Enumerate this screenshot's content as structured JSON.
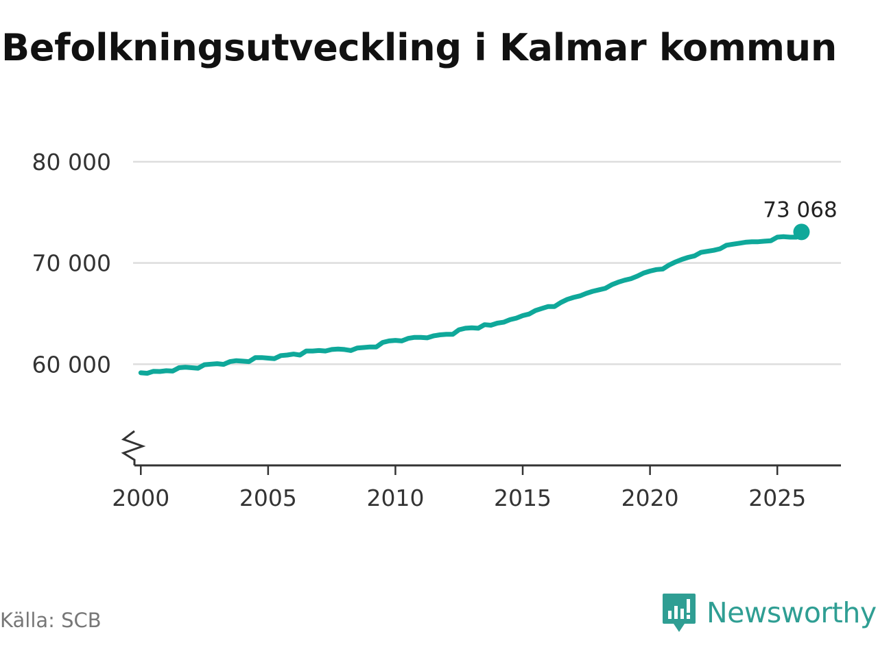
{
  "title": "Befolkningsutveckling i Kalmar kommun",
  "source": "Källa: SCB",
  "brand": {
    "name": "Newsworthy",
    "icon": "newsworthy-logo-icon",
    "color": "#2f9e93"
  },
  "colors": {
    "line": "#0fa89a",
    "grid": "#dddddd",
    "axis": "#333333"
  },
  "chart_data": {
    "type": "line",
    "title": "Befolkningsutveckling i Kalmar kommun",
    "xlabel": "",
    "ylabel": "",
    "xlim": [
      1999.75,
      2027.5
    ],
    "ylim": [
      50000,
      80000
    ],
    "y_break": true,
    "grid": "horizontal",
    "y_ticks": [
      {
        "value": 60000,
        "label": "60 000"
      },
      {
        "value": 70000,
        "label": "70 000"
      },
      {
        "value": 80000,
        "label": "80 000"
      }
    ],
    "x_ticks": [
      {
        "value": 2000,
        "label": "2000"
      },
      {
        "value": 2005,
        "label": "2005"
      },
      {
        "value": 2010,
        "label": "2010"
      },
      {
        "value": 2015,
        "label": "2015"
      },
      {
        "value": 2020,
        "label": "2020"
      },
      {
        "value": 2025,
        "label": "2025"
      }
    ],
    "end_label": "73 068",
    "series": [
      {
        "x": [
          2000.0,
          2000.25,
          2000.5,
          2000.75,
          2001.0,
          2001.25,
          2001.5,
          2001.75,
          2002.0,
          2002.25,
          2002.5,
          2002.75,
          2003.0,
          2003.25,
          2003.5,
          2003.75,
          2004.0,
          2004.25,
          2004.5,
          2004.75,
          2005.0,
          2005.25,
          2005.5,
          2005.75,
          2006.0,
          2006.25,
          2006.5,
          2006.75,
          2007.0,
          2007.25,
          2007.5,
          2007.75,
          2008.0,
          2008.25,
          2008.5,
          2008.75,
          2009.0,
          2009.25,
          2009.5,
          2009.75,
          2010.0,
          2010.25,
          2010.5,
          2010.75,
          2011.0,
          2011.25,
          2011.5,
          2011.75,
          2012.0,
          2012.25,
          2012.5,
          2012.75,
          2013.0,
          2013.25,
          2013.5,
          2013.75,
          2014.0,
          2014.25,
          2014.5,
          2014.75,
          2015.0,
          2015.25,
          2015.5,
          2015.75,
          2016.0,
          2016.25,
          2016.5,
          2016.75,
          2017.0,
          2017.25,
          2017.5,
          2017.75,
          2018.0,
          2018.25,
          2018.5,
          2018.75,
          2019.0,
          2019.25,
          2019.5,
          2019.75,
          2020.0,
          2020.25,
          2020.5,
          2020.75,
          2021.0,
          2021.25,
          2021.5,
          2021.75,
          2022.0,
          2022.25,
          2022.5,
          2022.75,
          2023.0,
          2023.25,
          2023.5,
          2023.75,
          2024.0,
          2024.25,
          2024.5,
          2024.75,
          2025.0,
          2025.25,
          2025.5,
          2025.75,
          2025.95
        ],
        "values": [
          59150,
          59100,
          59300,
          59280,
          59350,
          59320,
          59650,
          59700,
          59650,
          59600,
          59950,
          60000,
          60050,
          59980,
          60250,
          60350,
          60300,
          60250,
          60650,
          60650,
          60600,
          60550,
          60850,
          60900,
          61000,
          60900,
          61300,
          61300,
          61350,
          61300,
          61450,
          61500,
          61450,
          61350,
          61600,
          61650,
          61700,
          61700,
          62150,
          62300,
          62350,
          62300,
          62550,
          62650,
          62650,
          62600,
          62800,
          62900,
          62950,
          62950,
          63400,
          63550,
          63600,
          63550,
          63900,
          63850,
          64050,
          64150,
          64400,
          64550,
          64800,
          64950,
          65300,
          65500,
          65700,
          65700,
          66100,
          66400,
          66600,
          66750,
          67000,
          67200,
          67350,
          67500,
          67850,
          68100,
          68300,
          68450,
          68700,
          69000,
          69200,
          69350,
          69400,
          69800,
          70100,
          70350,
          70550,
          70700,
          71050,
          71150,
          71250,
          71400,
          71750,
          71850,
          71950,
          72050,
          72100,
          72100,
          72150,
          72200,
          72550,
          72600,
          72550,
          72550,
          73068
        ]
      }
    ]
  }
}
